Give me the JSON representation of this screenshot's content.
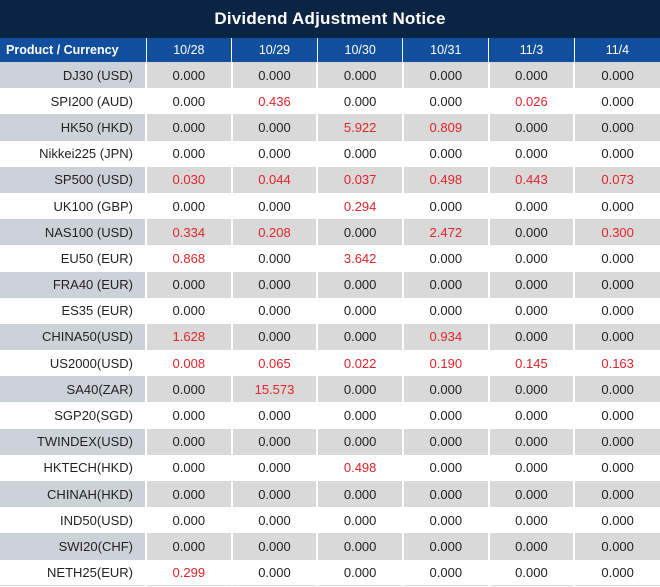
{
  "title": "Dividend Adjustment Notice",
  "table": {
    "columns": [
      "Product / Currency",
      "10/28",
      "10/29",
      "10/30",
      "10/31",
      "11/3",
      "11/4"
    ],
    "rows": [
      {
        "product": "DJ30 (USD)",
        "values": [
          "0.000",
          "0.000",
          "0.000",
          "0.000",
          "0.000",
          "0.000"
        ]
      },
      {
        "product": "SPI200 (AUD)",
        "values": [
          "0.000",
          "0.436",
          "0.000",
          "0.000",
          "0.026",
          "0.000"
        ]
      },
      {
        "product": "HK50 (HKD)",
        "values": [
          "0.000",
          "0.000",
          "5.922",
          "0.809",
          "0.000",
          "0.000"
        ]
      },
      {
        "product": "Nikkei225 (JPN)",
        "values": [
          "0.000",
          "0.000",
          "0.000",
          "0.000",
          "0.000",
          "0.000"
        ]
      },
      {
        "product": "SP500 (USD)",
        "values": [
          "0.030",
          "0.044",
          "0.037",
          "0.498",
          "0.443",
          "0.073"
        ]
      },
      {
        "product": "UK100 (GBP)",
        "values": [
          "0.000",
          "0.000",
          "0.294",
          "0.000",
          "0.000",
          "0.000"
        ]
      },
      {
        "product": "NAS100 (USD)",
        "values": [
          "0.334",
          "0.208",
          "0.000",
          "2.472",
          "0.000",
          "0.300"
        ]
      },
      {
        "product": "EU50 (EUR)",
        "values": [
          "0.868",
          "0.000",
          "3.642",
          "0.000",
          "0.000",
          "0.000"
        ]
      },
      {
        "product": "FRA40 (EUR)",
        "values": [
          "0.000",
          "0.000",
          "0.000",
          "0.000",
          "0.000",
          "0.000"
        ]
      },
      {
        "product": "ES35 (EUR)",
        "values": [
          "0.000",
          "0.000",
          "0.000",
          "0.000",
          "0.000",
          "0.000"
        ]
      },
      {
        "product": "CHINA50(USD)",
        "values": [
          "1.628",
          "0.000",
          "0.000",
          "0.934",
          "0.000",
          "0.000"
        ]
      },
      {
        "product": "US2000(USD)",
        "values": [
          "0.008",
          "0.065",
          "0.022",
          "0.190",
          "0.145",
          "0.163"
        ]
      },
      {
        "product": "SA40(ZAR)",
        "values": [
          "0.000",
          "15.573",
          "0.000",
          "0.000",
          "0.000",
          "0.000"
        ]
      },
      {
        "product": "SGP20(SGD)",
        "values": [
          "0.000",
          "0.000",
          "0.000",
          "0.000",
          "0.000",
          "0.000"
        ]
      },
      {
        "product": "TWINDEX(USD)",
        "values": [
          "0.000",
          "0.000",
          "0.000",
          "0.000",
          "0.000",
          "0.000"
        ]
      },
      {
        "product": "HKTECH(HKD)",
        "values": [
          "0.000",
          "0.000",
          "0.498",
          "0.000",
          "0.000",
          "0.000"
        ]
      },
      {
        "product": "CHINAH(HKD)",
        "values": [
          "0.000",
          "0.000",
          "0.000",
          "0.000",
          "0.000",
          "0.000"
        ]
      },
      {
        "product": "IND50(USD)",
        "values": [
          "0.000",
          "0.000",
          "0.000",
          "0.000",
          "0.000",
          "0.000"
        ]
      },
      {
        "product": "SWI20(CHF)",
        "values": [
          "0.000",
          "0.000",
          "0.000",
          "0.000",
          "0.000",
          "0.000"
        ]
      },
      {
        "product": "NETH25(EUR)",
        "values": [
          "0.299",
          "0.000",
          "0.000",
          "0.000",
          "0.000",
          "0.000"
        ]
      }
    ]
  },
  "colors": {
    "title_bg": "#0b2443",
    "header_bg": "#114f9e",
    "zebra_bg": "#d9d9d9",
    "zebra_label_bg": "#cdd2d9",
    "nonzero_value": "#e3232a",
    "value_text": "#222222"
  }
}
